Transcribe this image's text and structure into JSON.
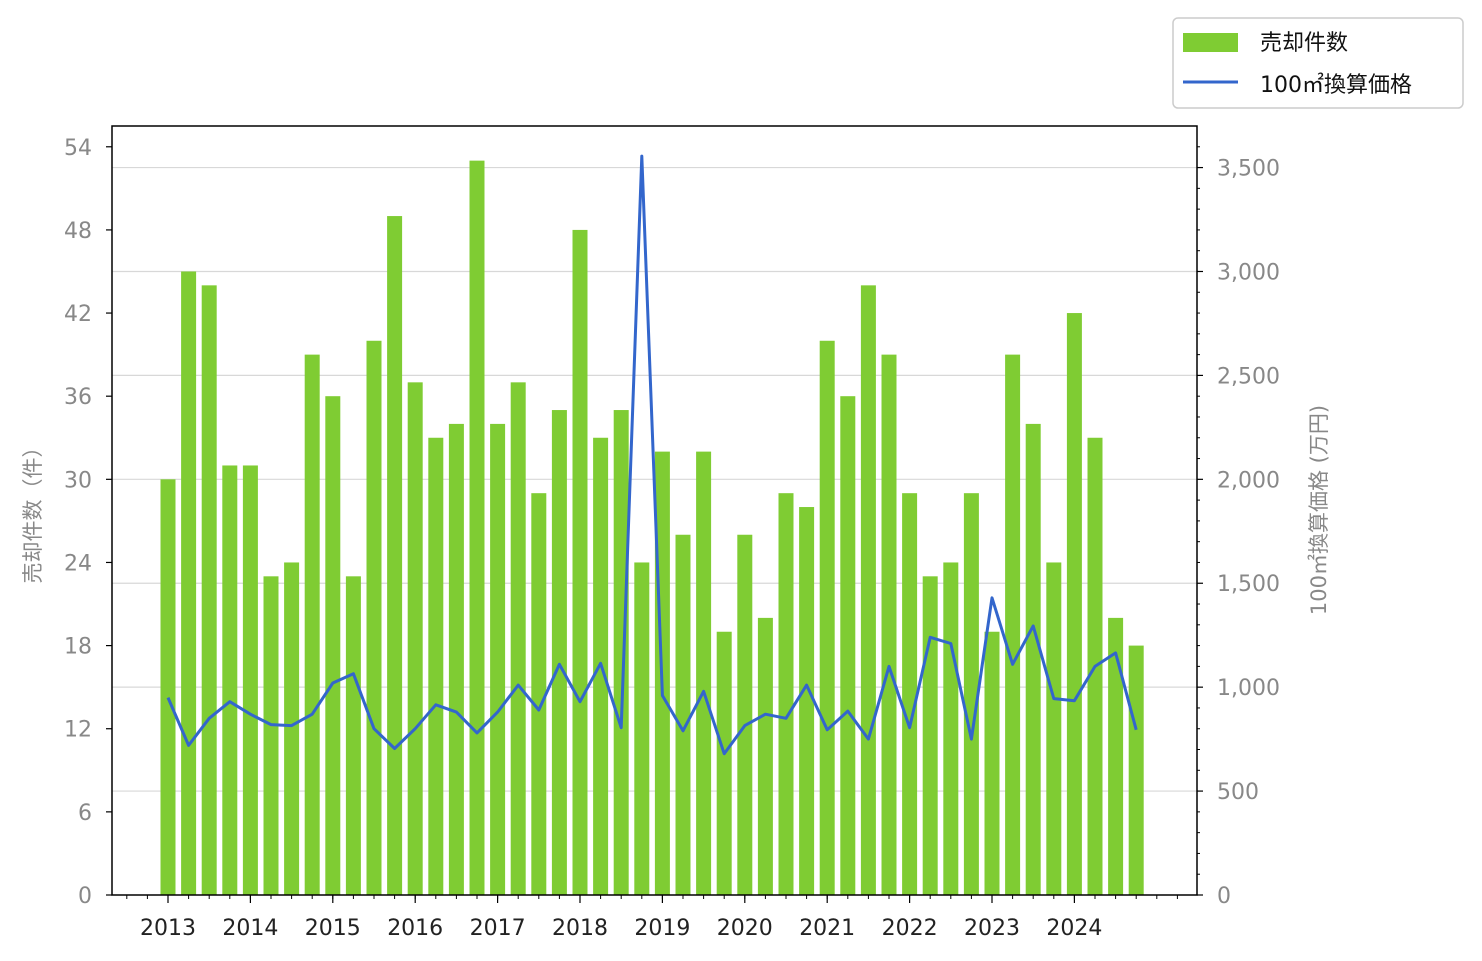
{
  "chart_data": {
    "type": "bar",
    "x_tick_labels": [
      "2013",
      "2014",
      "2015",
      "2016",
      "2017",
      "2018",
      "2019",
      "2020",
      "2021",
      "2022",
      "2023",
      "2024"
    ],
    "ylabel_left": "売却件数（件）",
    "ylabel_right": "100㎡換算価格 (万円)",
    "ylim_left": [
      0,
      55.5
    ],
    "ylim_right": [
      0,
      3700
    ],
    "yticks_left": [
      0,
      6,
      12,
      18,
      24,
      30,
      36,
      42,
      48,
      54
    ],
    "yticks_right": [
      0,
      500,
      1000,
      1500,
      2000,
      2500,
      3000,
      3500
    ],
    "yticks_right_labels": [
      "0",
      "500",
      "1,000",
      "1,500",
      "2,000",
      "2,500",
      "3,000",
      "3,500"
    ],
    "grid": "horizontal, right axis",
    "legend_position": "top-right",
    "legend": [
      {
        "name": "売却件数",
        "color": "#7fcc33",
        "kind": "bar"
      },
      {
        "name": "100㎡換算価格",
        "color": "#3366cc",
        "kind": "line"
      }
    ],
    "series": [
      {
        "name": "売却件数",
        "type": "bar",
        "axis": "left",
        "color": "#7fcc33",
        "values": [
          30,
          45,
          44,
          31,
          31,
          23,
          24,
          39,
          36,
          23,
          40,
          49,
          37,
          33,
          34,
          53,
          34,
          37,
          29,
          35,
          48,
          33,
          35,
          24,
          32,
          26,
          32,
          19,
          26,
          20,
          29,
          28,
          40,
          36,
          44,
          39,
          29,
          23,
          24,
          29,
          19,
          39,
          34,
          24,
          42,
          33,
          20,
          18
        ]
      },
      {
        "name": "100㎡換算価格",
        "type": "line",
        "axis": "right",
        "color": "#3366cc",
        "values": [
          950,
          720,
          850,
          930,
          870,
          820,
          815,
          870,
          1020,
          1065,
          800,
          705,
          800,
          915,
          880,
          780,
          880,
          1010,
          890,
          1110,
          930,
          1115,
          805,
          3555,
          960,
          790,
          980,
          680,
          815,
          870,
          850,
          1010,
          795,
          885,
          750,
          1100,
          805,
          1240,
          1210,
          750,
          1430,
          1110,
          1295,
          945,
          935,
          1100,
          1165,
          795
        ]
      }
    ]
  }
}
